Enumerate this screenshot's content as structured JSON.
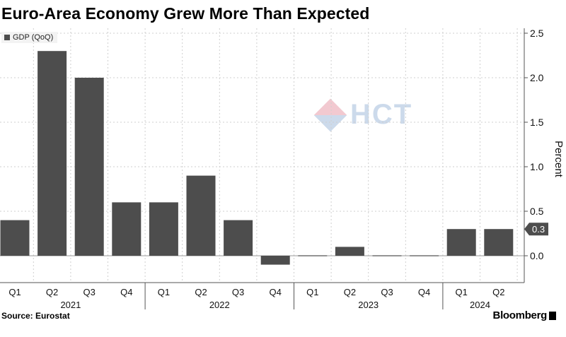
{
  "title": "Euro-Area Economy Grew More Than Expected",
  "source": "Source: Eurostat",
  "brand": "Bloomberg",
  "watermark": "HCT",
  "chart_data": {
    "type": "bar",
    "title": "Euro-Area Economy Grew More Than Expected",
    "categories": [
      "Q1",
      "Q2",
      "Q3",
      "Q4",
      "Q1",
      "Q2",
      "Q3",
      "Q4",
      "Q1",
      "Q2",
      "Q3",
      "Q4",
      "Q1",
      "Q2"
    ],
    "years": [
      {
        "label": "2021",
        "start": 0,
        "end": 3
      },
      {
        "label": "2022",
        "start": 4,
        "end": 7
      },
      {
        "label": "2023",
        "start": 8,
        "end": 11
      },
      {
        "label": "2024",
        "start": 12,
        "end": 13
      }
    ],
    "series": [
      {
        "name": "GDP (QoQ)",
        "values": [
          0.4,
          2.3,
          2.0,
          0.6,
          0.6,
          0.9,
          0.4,
          -0.1,
          0.0,
          0.1,
          0.0,
          0.0,
          0.3,
          0.3
        ]
      }
    ],
    "ylabel": "Percent",
    "ylim": [
      -0.3,
      2.5
    ],
    "yticks": [
      0.0,
      0.5,
      1.0,
      1.5,
      2.0,
      2.5
    ],
    "ytick_labels": [
      "0.0",
      "0.5",
      "1.0",
      "1.5",
      "2.0",
      "2.5"
    ],
    "last_value_label": "0.3",
    "bar_color": "#4d4d4d",
    "grid": true,
    "legend_position": "top-left",
    "y_axis_side": "right"
  }
}
